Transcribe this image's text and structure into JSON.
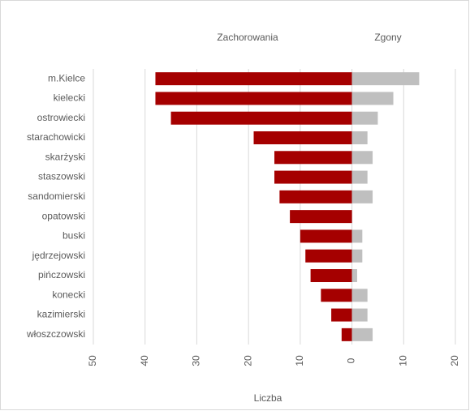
{
  "chart_data": {
    "type": "bar",
    "orientation": "horizontal",
    "x_label": "Liczba",
    "categories": [
      "m.Kielce",
      "kielecki",
      "ostrowiecki",
      "starachowicki",
      "skarżyski",
      "staszowski",
      "sandomierski",
      "opatowski",
      "buski",
      "jędrzejowski",
      "pińczowski",
      "konecki",
      "kazimierski",
      "włoszczowski"
    ],
    "series": [
      {
        "name": "Zachorowania",
        "color": "#a50000",
        "values": [
          -38,
          -38,
          -35,
          -19,
          -15,
          -15,
          -14,
          -12,
          -10,
          -9,
          -8,
          -6,
          -4,
          -2
        ]
      },
      {
        "name": "Zgony",
        "color": "#bfbfbf",
        "values": [
          13,
          8,
          5,
          3,
          4,
          3,
          4,
          0,
          2,
          2,
          1,
          3,
          3,
          4
        ]
      }
    ],
    "xlim": [
      -50,
      20
    ],
    "xticks": [
      {
        "value": -50,
        "label": "50"
      },
      {
        "value": -40,
        "label": "40"
      },
      {
        "value": -30,
        "label": "30"
      },
      {
        "value": -20,
        "label": "20"
      },
      {
        "value": -10,
        "label": "10"
      },
      0,
      10,
      20
    ],
    "grid": true
  }
}
